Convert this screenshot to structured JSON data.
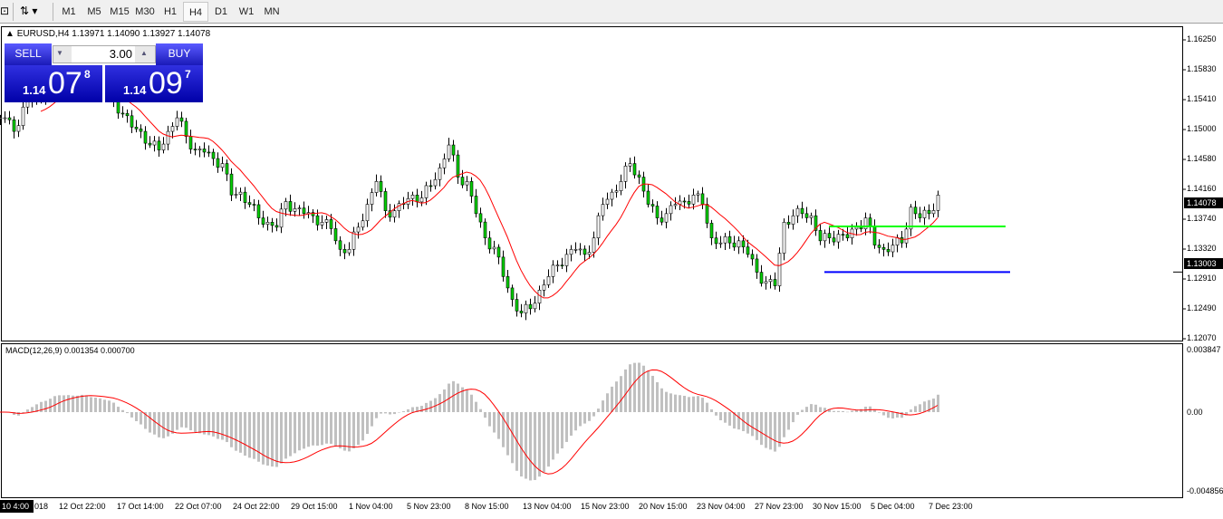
{
  "toolbar": {
    "timeframes": [
      "M1",
      "M5",
      "M15",
      "M30",
      "H1",
      "H4",
      "D1",
      "W1",
      "MN"
    ],
    "active": "H4"
  },
  "symbol": {
    "info": "EURUSD,H4  1.13971 1.14090 1.13927 1.14078"
  },
  "trade_panel": {
    "sell_label": "SELL",
    "buy_label": "BUY",
    "lot": "3.00",
    "sell_prefix": "1.14",
    "sell_big": "07",
    "sell_sup": "8",
    "buy_prefix": "1.14",
    "buy_big": "09",
    "buy_sup": "7"
  },
  "price_axis": [
    "1.16250",
    "1.15830",
    "1.15410",
    "1.15000",
    "1.14580",
    "1.14160",
    "1.13740",
    "1.13320",
    "1.12910",
    "1.12490",
    "1.12070"
  ],
  "current_price": "1.14078",
  "line_price": "1.13003",
  "macd": {
    "label": "MACD(12,26,9) 0.001354 0.000700",
    "axis_top": "0.003847",
    "axis_zero": "0.00",
    "axis_bottom": "-0.004856"
  },
  "time_axis": {
    "cursor": "10 4:00",
    "labels": [
      "018",
      "12 Oct 22:00",
      "17 Oct 14:00",
      "22 Oct 07:00",
      "24 Oct 22:00",
      "29 Oct 15:00",
      "1 Nov 04:00",
      "5 Nov 23:00",
      "8 Nov 15:00",
      "13 Nov 04:00",
      "15 Nov 23:00",
      "20 Nov 15:00",
      "23 Nov 04:00",
      "27 Nov 23:00",
      "30 Nov 15:00",
      "5 Dec 04:00",
      "7 Dec 23:00"
    ]
  },
  "colors": {
    "bull": "#00d000",
    "bear": "#00d000",
    "ma": "#ff0000",
    "green_line": "#00ff00",
    "blue_line": "#0000ff",
    "macd_hist": "#c0c0c0",
    "macd_signal": "#ff0000",
    "panel_blue": "#2020c8"
  },
  "chart_data": {
    "type": "candlestick",
    "symbol": "EURUSD",
    "timeframe": "H4",
    "ylim": [
      1.1207,
      1.1625
    ],
    "closes": [
      1.1516,
      1.1497,
      1.1531,
      1.1539,
      1.1548,
      1.1554,
      1.1554,
      1.1554,
      1.1554,
      1.1554,
      1.1554,
      1.1548,
      1.1541,
      1.1522,
      1.1503,
      1.1497,
      1.1478,
      1.1471,
      1.1497,
      1.1516,
      1.149,
      1.1471,
      1.1468,
      1.1459,
      1.1452,
      1.1408,
      1.1412,
      1.1395,
      1.1376,
      1.137,
      1.1363,
      1.1399,
      1.1389,
      1.1382,
      1.1379,
      1.137,
      1.1361,
      1.1332,
      1.1332,
      1.1363,
      1.1395,
      1.1427,
      1.1386,
      1.1386,
      1.1395,
      1.1408,
      1.1404,
      1.1421,
      1.1446,
      1.1478,
      1.1433,
      1.1427,
      1.1382,
      1.1348,
      1.1335,
      1.1294,
      1.1262,
      1.1243,
      1.1249,
      1.1275,
      1.1294,
      1.131,
      1.1325,
      1.1332,
      1.1325,
      1.1348,
      1.1395,
      1.1412,
      1.1427,
      1.1452,
      1.1433,
      1.1395,
      1.1376,
      1.1382,
      1.1395,
      1.1399,
      1.1408,
      1.1395,
      1.1348,
      1.1341,
      1.1341,
      1.1344,
      1.1325,
      1.13,
      1.1287,
      1.1281,
      1.137,
      1.1379,
      1.1382,
      1.1379,
      1.1344,
      1.1348,
      1.1353,
      1.1348,
      1.1363,
      1.1376,
      1.1338,
      1.1332,
      1.1338,
      1.1341,
      1.1391,
      1.1376,
      1.1382,
      1.1408
    ],
    "hlines": [
      {
        "price": 1.1364,
        "color": "#00ff00"
      },
      {
        "price": 1.13003,
        "color": "#0000ff"
      }
    ],
    "macd_ylim": [
      -0.004856,
      0.003847
    ]
  }
}
